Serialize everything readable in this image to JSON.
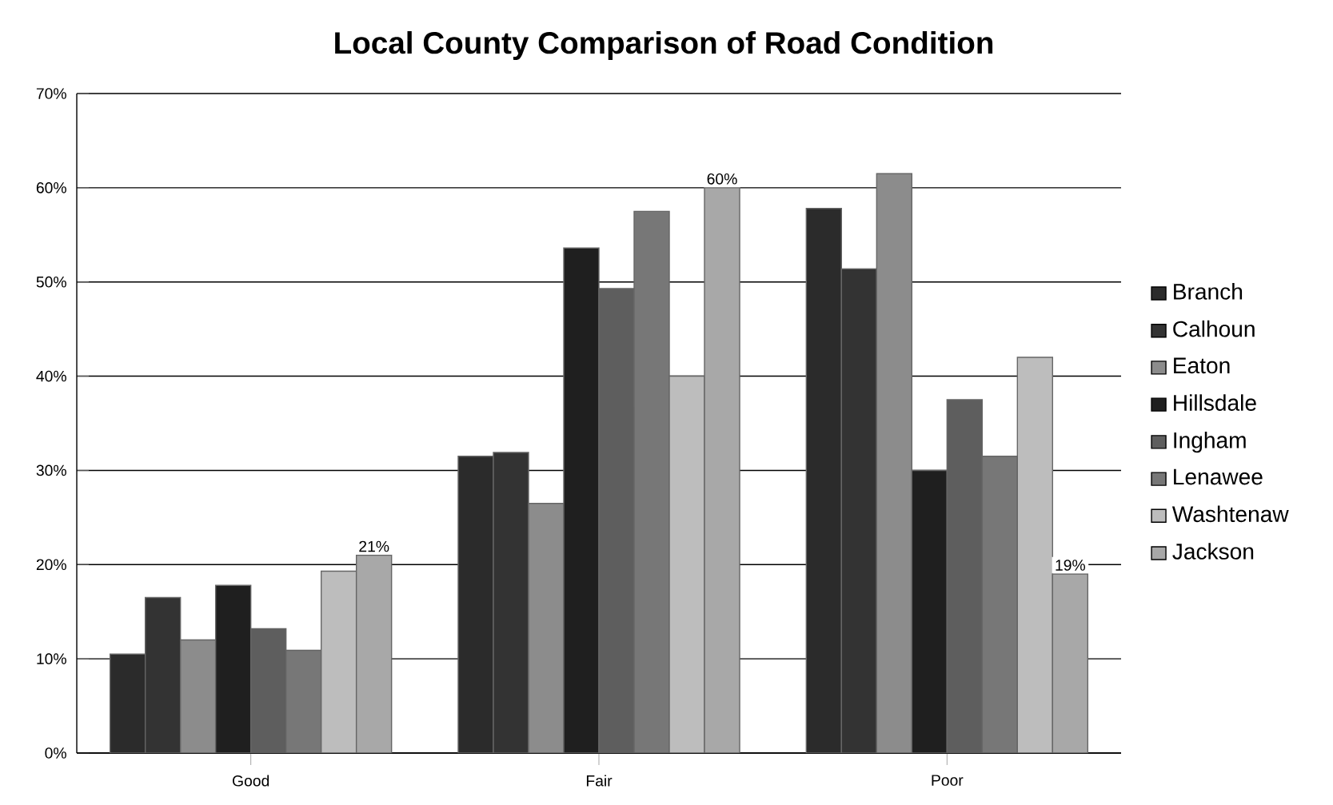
{
  "chart_data": {
    "type": "bar",
    "title": "Local County Comparison of Road Condition",
    "categories": [
      "Good",
      "Fair",
      "Poor"
    ],
    "series": [
      {
        "name": "Branch",
        "color": "#2b2b2b",
        "values": [
          10.5,
          31.5,
          57.8
        ]
      },
      {
        "name": "Calhoun",
        "color": "#333333",
        "values": [
          16.5,
          31.9,
          51.4
        ]
      },
      {
        "name": "Eaton",
        "color": "#8c8c8c",
        "values": [
          12,
          26.5,
          61.5
        ]
      },
      {
        "name": "Hillsdale",
        "color": "#1f1f1f",
        "values": [
          17.8,
          53.6,
          30
        ]
      },
      {
        "name": "Ingham",
        "color": "#5e5e5e",
        "values": [
          13.2,
          49.3,
          37.5
        ]
      },
      {
        "name": "Lenawee",
        "color": "#777777",
        "values": [
          10.9,
          57.5,
          31.5
        ]
      },
      {
        "name": "Washtenaw",
        "color": "#bdbdbd",
        "values": [
          19.3,
          40,
          42
        ]
      },
      {
        "name": "Jackson",
        "color": "#a8a8a8",
        "values": [
          21,
          60,
          19
        ],
        "value_labels": [
          "21%",
          "60%",
          "19%"
        ]
      }
    ],
    "ylim": [
      0,
      70
    ],
    "yticks": [
      {
        "value": 0,
        "label": "0%"
      },
      {
        "value": 10,
        "label": "10%"
      },
      {
        "value": 20,
        "label": "20%"
      },
      {
        "value": 30,
        "label": "30%"
      },
      {
        "value": 40,
        "label": "40%"
      },
      {
        "value": 50,
        "label": "50%"
      },
      {
        "value": 60,
        "label": "60%"
      },
      {
        "value": 70,
        "label": "70%"
      }
    ],
    "grid": "y",
    "legend": "right"
  }
}
